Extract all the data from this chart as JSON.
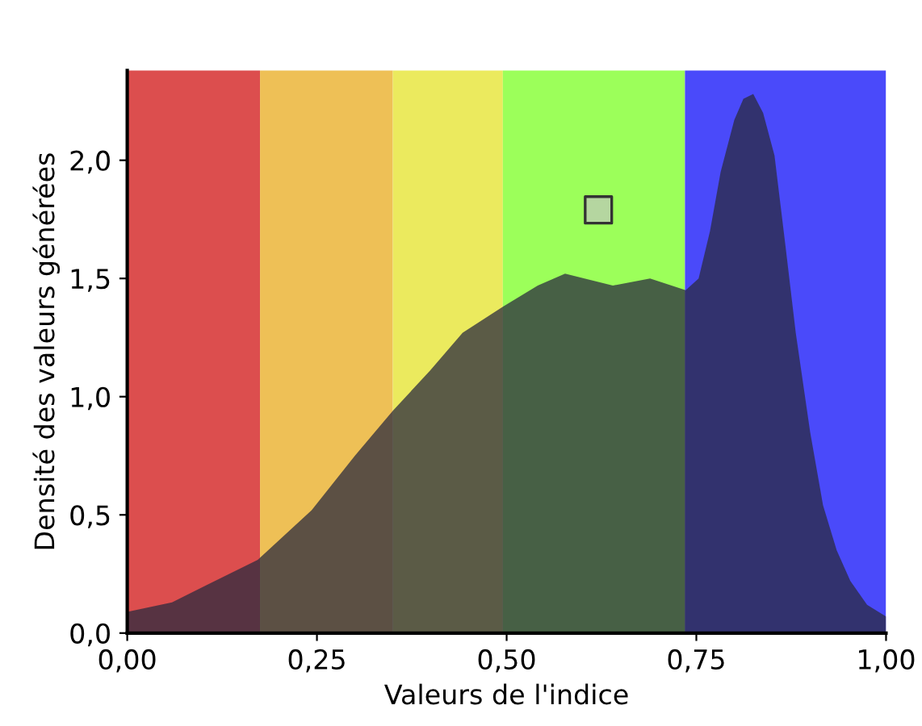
{
  "chart_data": {
    "type": "area",
    "xlabel": "Valeurs de l'indice",
    "ylabel": "Densité des valeurs générées",
    "xlim": [
      0,
      1
    ],
    "ylim": [
      0,
      2.38
    ],
    "xticks": [
      {
        "value": 0,
        "label": "0,00"
      },
      {
        "value": 0.25,
        "label": "0,25"
      },
      {
        "value": 0.5,
        "label": "0,50"
      },
      {
        "value": 0.75,
        "label": "0,75"
      },
      {
        "value": 1,
        "label": "1,00"
      }
    ],
    "yticks": [
      {
        "value": 0,
        "label": "0,0"
      },
      {
        "value": 0.5,
        "label": "0,5"
      },
      {
        "value": 1,
        "label": "1,0"
      },
      {
        "value": 1.5,
        "label": "1,5"
      },
      {
        "value": 2,
        "label": "2,0"
      }
    ],
    "bands": [
      {
        "axis": "x",
        "from": 0,
        "to": 0.175,
        "label": null,
        "color": "#dc4e4e"
      },
      {
        "axis": "x",
        "from": 0.175,
        "to": 0.35,
        "label": null,
        "color": "#eec056"
      },
      {
        "axis": "x",
        "from": 0.35,
        "to": 0.495,
        "label": null,
        "color": "#ebea5e"
      },
      {
        "axis": "x",
        "from": 0.495,
        "to": 0.735,
        "label": null,
        "color": "#9cff5a"
      },
      {
        "axis": "x",
        "from": 0.735,
        "to": 1,
        "label": null,
        "color": "#4a4afa"
      }
    ],
    "series": [
      {
        "color": "#2b2b3f",
        "x": [
          0,
          0.059,
          0.172,
          0.243,
          0.3,
          0.35,
          0.399,
          0.442,
          0.495,
          0.541,
          0.577,
          0.64,
          0.689,
          0.736,
          0.753,
          0.768,
          0.782,
          0.8,
          0.812,
          0.825,
          0.838,
          0.853,
          0.867,
          0.881,
          0.9,
          0.917,
          0.935,
          0.953,
          0.975,
          1.0
        ],
        "values": [
          0.09,
          0.13,
          0.31,
          0.52,
          0.75,
          0.94,
          1.11,
          1.27,
          1.38,
          1.47,
          1.52,
          1.47,
          1.5,
          1.45,
          1.5,
          1.7,
          1.95,
          2.17,
          2.26,
          2.28,
          2.2,
          2.02,
          1.65,
          1.27,
          0.85,
          0.54,
          0.35,
          0.22,
          0.12,
          0.07
        ]
      },
      {
        "type": "scatter",
        "color": "#b5d6a0",
        "marker": "square",
        "x": [
          0.621
        ],
        "values": [
          1.79
        ]
      }
    ],
    "grid": false,
    "legend": false
  }
}
